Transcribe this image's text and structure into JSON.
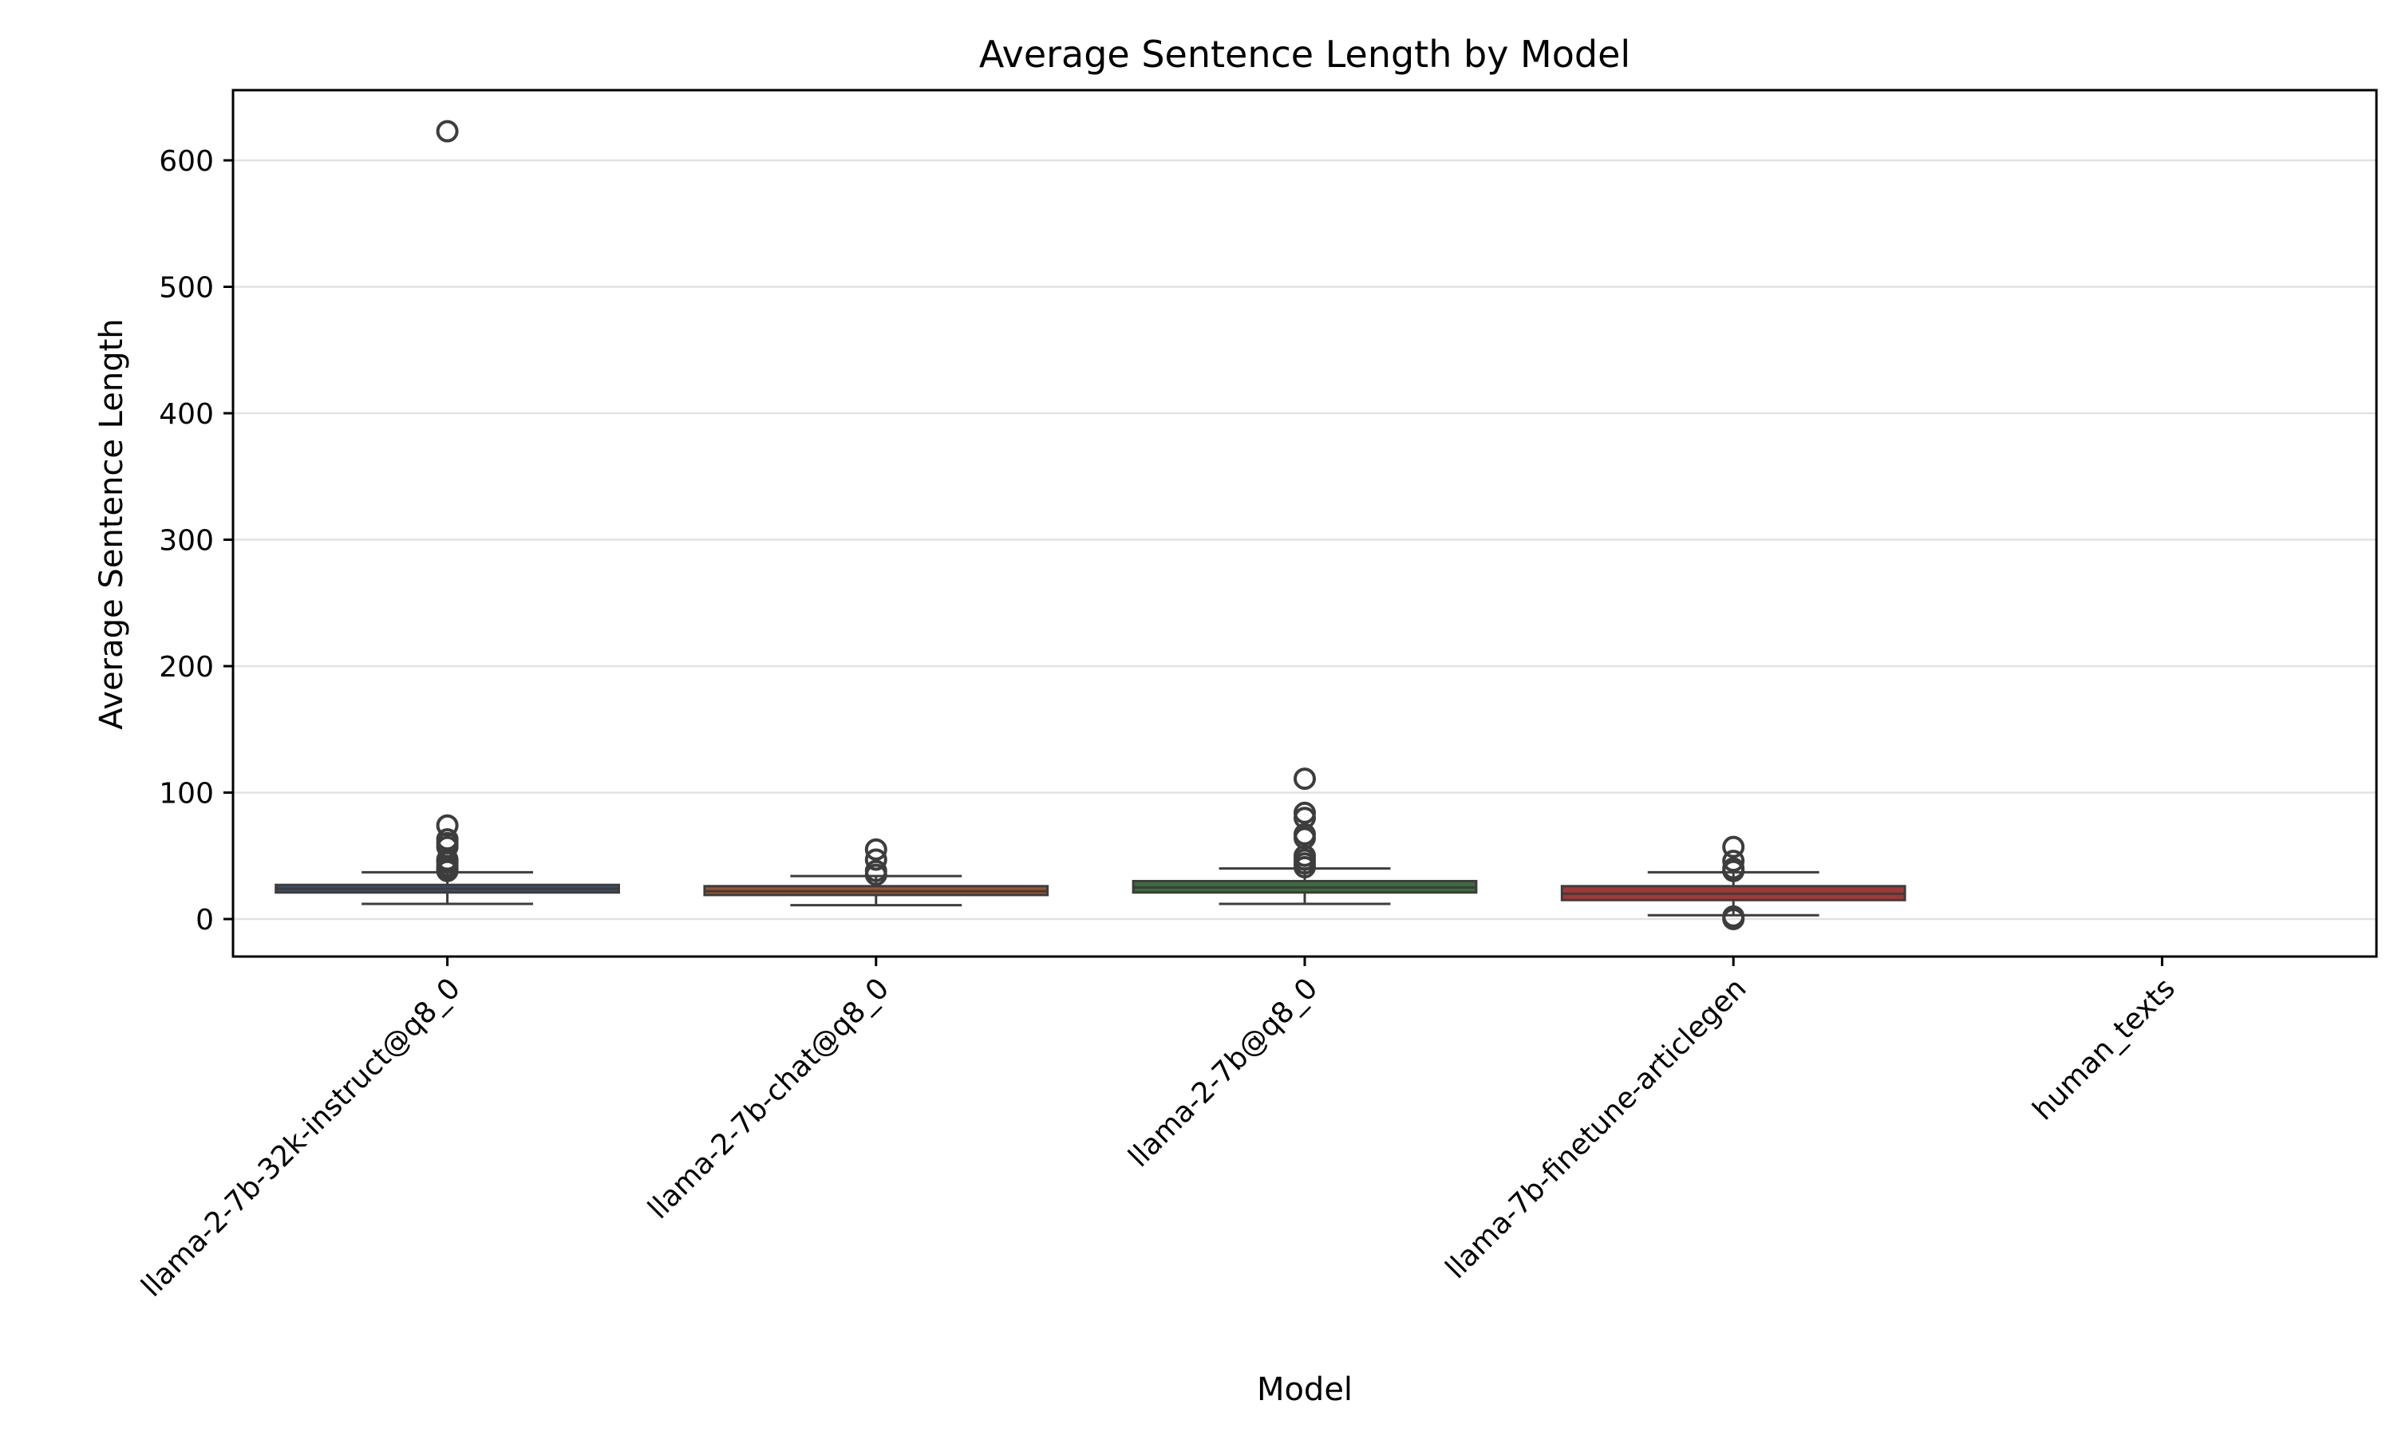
{
  "chart_data": {
    "type": "box",
    "title": "Average Sentence Length by Model",
    "xlabel": "Model",
    "ylabel": "Average Sentence Length",
    "ylim": [
      -30,
      655
    ],
    "yticks": [
      0,
      100,
      200,
      300,
      400,
      500,
      600
    ],
    "grid": "horizontal",
    "categories": [
      "llama-2-7b-32k-instruct@q8_0",
      "llama-2-7b-chat@q8_0",
      "llama-2-7b@q8_0",
      "llama-7b-finetune-articlegen",
      "human_texts"
    ],
    "series": [
      {
        "category": "llama-2-7b-32k-instruct@q8_0",
        "color": "#3a4f6b",
        "whisker_low": 12,
        "q1": 21,
        "median": 24,
        "q3": 27,
        "whisker_high": 37,
        "outliers": [
          38,
          40,
          42,
          45,
          47,
          57,
          60,
          63,
          74,
          623
        ]
      },
      {
        "category": "llama-2-7b-chat@q8_0",
        "color": "#a2532a",
        "whisker_low": 11,
        "q1": 19,
        "median": 22,
        "q3": 26,
        "whisker_high": 34,
        "outliers": [
          35,
          38,
          47,
          55
        ]
      },
      {
        "category": "llama-2-7b@q8_0",
        "color": "#3b6e3a",
        "whisker_low": 12,
        "q1": 21,
        "median": 25,
        "q3": 30,
        "whisker_high": 40,
        "outliers": [
          41,
          44,
          47,
          50,
          64,
          67,
          80,
          84,
          111
        ]
      },
      {
        "category": "llama-7b-finetune-articlegen",
        "color": "#a83637",
        "whisker_low": 3,
        "q1": 15,
        "median": 20,
        "q3": 26,
        "whisker_high": 37,
        "outliers": [
          0,
          2,
          38,
          40,
          46,
          57
        ]
      },
      {
        "category": "human_texts",
        "color": "",
        "whisker_low": null,
        "q1": null,
        "median": null,
        "q3": null,
        "whisker_high": null,
        "outliers": []
      }
    ]
  }
}
